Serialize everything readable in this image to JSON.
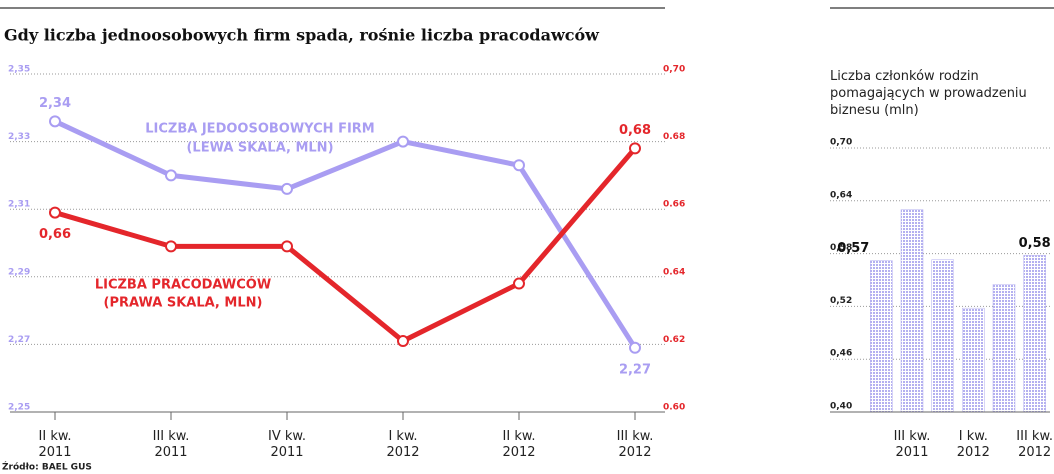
{
  "chart_data": [
    {
      "type": "line",
      "title": "Gdy liczba jednoosobowych firm spada, rośnie liczba pracodawców",
      "categories": [
        "II kw. 2011",
        "III kw. 2011",
        "IV kw. 2011",
        "I kw. 2012",
        "II kw. 2012",
        "III kw. 2012"
      ],
      "series": [
        {
          "name": "LICZBA JEDOOSOBOWYCH FIRM",
          "color": "#a99df2",
          "values": [
            2.336,
            2.32,
            2.316,
            2.33,
            2.323,
            2.269
          ],
          "value_labels": [
            "2,34",
            null,
            null,
            null,
            null,
            "2,27"
          ]
        },
        {
          "name": "LICZBA PRACODAWCÓW",
          "color": "#e4262b",
          "axis": "y2",
          "values": [
            0.659,
            0.649,
            0.649,
            0.621,
            0.638,
            0.678
          ],
          "value_labels": [
            "0,66",
            null,
            null,
            null,
            null,
            "0,68"
          ]
        }
      ],
      "annotations": [
        "(LEWA SKALA, MLN)",
        "(PRAWA SKALA, MLN)"
      ],
      "ylim": [
        2.25,
        2.35
      ],
      "yticks": [
        {
          "value": 2.25,
          "label": "2,25"
        },
        {
          "value": 2.27,
          "label": "2,27"
        },
        {
          "value": 2.29,
          "label": "2,29"
        },
        {
          "value": 2.31,
          "label": "2,31"
        },
        {
          "value": 2.33,
          "label": "2,33"
        },
        {
          "value": 2.35,
          "label": "2,35"
        }
      ],
      "y2lim": [
        0.6,
        0.7
      ],
      "y2ticks": [
        {
          "value": 0.6,
          "label": "0.60"
        },
        {
          "value": 0.62,
          "label": "0.62"
        },
        {
          "value": 0.64,
          "label": "0.64"
        },
        {
          "value": 0.66,
          "label": "0.66"
        },
        {
          "value": 0.68,
          "label": "0.68"
        },
        {
          "value": 0.7,
          "label": "0,70"
        }
      ],
      "grid": true,
      "source": "Źródło: BAEL GUS"
    },
    {
      "type": "bar",
      "title": "Liczba członków rodzin pomagających w prowadzeniu biznesu (mln)",
      "categories": [
        null,
        "III kw. 2011",
        null,
        "I kw. 2012",
        null,
        "III kw. 2012"
      ],
      "values": [
        0.572,
        0.63,
        0.573,
        0.518,
        0.545,
        0.578
      ],
      "value_labels": [
        "0,57",
        null,
        null,
        null,
        null,
        "0,58"
      ],
      "color": "#b4b0f0",
      "ylim": [
        0.4,
        0.7
      ],
      "yticks": [
        {
          "value": 0.4,
          "label": "0,40"
        },
        {
          "value": 0.46,
          "label": "0,46"
        },
        {
          "value": 0.52,
          "label": "0,52"
        },
        {
          "value": 0.58,
          "label": "0,58"
        },
        {
          "value": 0.64,
          "label": "0,64"
        },
        {
          "value": 0.7,
          "label": "0,70"
        }
      ],
      "grid": true
    }
  ]
}
